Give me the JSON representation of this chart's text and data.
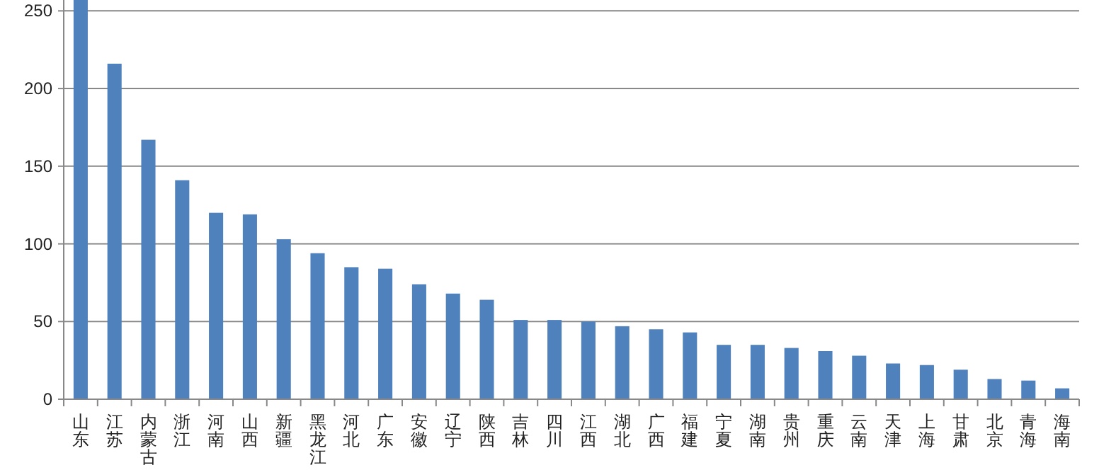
{
  "chart_data": {
    "type": "bar",
    "categories": [
      "山东",
      "江苏",
      "内蒙古",
      "浙江",
      "河南",
      "山西",
      "新疆",
      "黑龙江",
      "河北",
      "广东",
      "安徽",
      "辽宁",
      "陕西",
      "吉林",
      "四川",
      "江西",
      "湖北",
      "广西",
      "福建",
      "宁夏",
      "湖南",
      "贵州",
      "重庆",
      "云南",
      "天津",
      "上海",
      "甘肃",
      "北京",
      "青海",
      "海南"
    ],
    "values": [
      257,
      216,
      167,
      141,
      120,
      119,
      103,
      94,
      85,
      84,
      74,
      68,
      64,
      51,
      51,
      50,
      47,
      45,
      43,
      35,
      35,
      33,
      31,
      28,
      23,
      22,
      19,
      13,
      12,
      7
    ],
    "color": "#4f81bd",
    "ylim": [
      0,
      257
    ],
    "yticks": [
      0,
      50,
      100,
      150,
      200,
      250
    ],
    "grid": "y"
  }
}
